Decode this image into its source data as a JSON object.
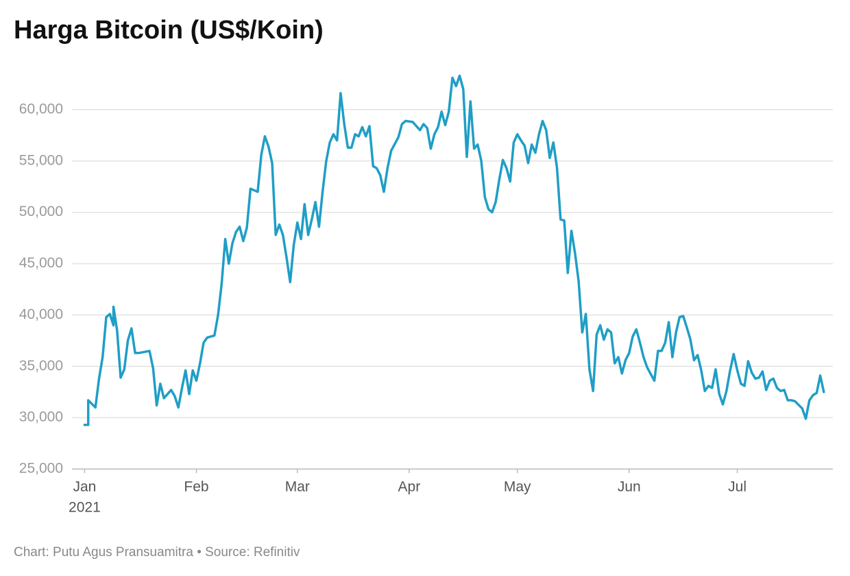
{
  "chart_data": {
    "type": "line",
    "title": "Harga Bitcoin (US$/Koin)",
    "footer": "Chart: Putu Agus Pransuamitra • Source: Refinitiv",
    "year_label": "2021",
    "color": "#1f9ec6",
    "grid": true,
    "xlim": [
      -3.5,
      207.5
    ],
    "xticks": [
      {
        "value": 0,
        "label": "Jan"
      },
      {
        "value": 31,
        "label": "Feb"
      },
      {
        "value": 59,
        "label": "Mar"
      },
      {
        "value": 90,
        "label": "Apr"
      },
      {
        "value": 120,
        "label": "May"
      },
      {
        "value": 151,
        "label": "Jun"
      },
      {
        "value": 181,
        "label": "Jul"
      }
    ],
    "ylim": [
      25000,
      64000
    ],
    "yticks": [
      {
        "value": 25000,
        "label": "25,000"
      },
      {
        "value": 30000,
        "label": "30,000"
      },
      {
        "value": 35000,
        "label": "35,000"
      },
      {
        "value": 40000,
        "label": "40,000"
      },
      {
        "value": 45000,
        "label": "45,000"
      },
      {
        "value": 50000,
        "label": "50,000"
      },
      {
        "value": 55000,
        "label": "55,000"
      },
      {
        "value": 60000,
        "label": "60,000"
      }
    ],
    "x": [
      0,
      1,
      1,
      3,
      4,
      5,
      6,
      7,
      8,
      8,
      9,
      10,
      11,
      12,
      13,
      14,
      15,
      18,
      19,
      20,
      21,
      22,
      24,
      25,
      26,
      27,
      28,
      29,
      30,
      31,
      32,
      33,
      34,
      36,
      37,
      38,
      39,
      40,
      41,
      42,
      43,
      44,
      45,
      46,
      48,
      49,
      50,
      51,
      52,
      53,
      54,
      55,
      56,
      57,
      58,
      59,
      60,
      61,
      62,
      63,
      64,
      65,
      66,
      67,
      68,
      69,
      70,
      71,
      72,
      73,
      74,
      75,
      76,
      77,
      78,
      79,
      80,
      81,
      82,
      83,
      84,
      85,
      87,
      88,
      89,
      91,
      92,
      93,
      94,
      95,
      96,
      97,
      98,
      99,
      100,
      101,
      102,
      103,
      104,
      105,
      106,
      107,
      108,
      109,
      110,
      111,
      112,
      113,
      114,
      115,
      116,
      117,
      118,
      119,
      120,
      121,
      122,
      123,
      124,
      125,
      126,
      127,
      128,
      129,
      130,
      131,
      132,
      133,
      134,
      135,
      136,
      137,
      138,
      139,
      140,
      141,
      142,
      143,
      144,
      145,
      146,
      147,
      148,
      149,
      150,
      151,
      152,
      153,
      154,
      155,
      156,
      158,
      159,
      160,
      161,
      162,
      163,
      164,
      165,
      166,
      167,
      168,
      169,
      170,
      171,
      172,
      173,
      174,
      175,
      176,
      177,
      178,
      179,
      180,
      181,
      182,
      183,
      184,
      185,
      186,
      187,
      188,
      189,
      190,
      191,
      192,
      193,
      194,
      195,
      196,
      197,
      199,
      200,
      201,
      202,
      203,
      204,
      205
    ],
    "values": [
      29300,
      29300,
      31700,
      31000,
      33800,
      35900,
      39800,
      40100,
      39000,
      40800,
      38500,
      33900,
      34700,
      37500,
      38700,
      36300,
      36300,
      36500,
      34800,
      31200,
      33300,
      31900,
      32700,
      32100,
      31000,
      32900,
      34600,
      32300,
      34600,
      33600,
      35300,
      37300,
      37800,
      38000,
      40000,
      43000,
      47400,
      45000,
      47000,
      48100,
      48600,
      47200,
      48500,
      52300,
      52000,
      55600,
      57400,
      56400,
      54800,
      47800,
      48800,
      47800,
      45600,
      43200,
      46800,
      49000,
      47400,
      50800,
      47800,
      49300,
      51000,
      48600,
      52000,
      55000,
      56800,
      57600,
      57000,
      61600,
      58600,
      56300,
      56300,
      57600,
      57400,
      58300,
      57400,
      58400,
      54500,
      54300,
      53600,
      52000,
      54300,
      56000,
      57300,
      58600,
      58900,
      58800,
      58400,
      58000,
      58600,
      58200,
      56200,
      57600,
      58300,
      59800,
      58500,
      59800,
      63100,
      62300,
      63300,
      62000,
      55400,
      60800,
      56200,
      56600,
      55000,
      51500,
      50300,
      50000,
      51000,
      53200,
      55100,
      54300,
      53000,
      56800,
      57600,
      57000,
      56500,
      54800,
      56600,
      55800,
      57600,
      58900,
      58000,
      55300,
      56800,
      54300,
      49300,
      49200,
      44100,
      48200,
      46000,
      43300,
      38300,
      40100,
      34700,
      32600,
      38100,
      39000,
      37600,
      38600,
      38300,
      35300,
      35900,
      34300,
      35600,
      36300,
      37900,
      38600,
      37300,
      35900,
      34900,
      33600,
      36500,
      36500,
      37300,
      39300,
      35900,
      38300,
      39800,
      39900,
      38800,
      37600,
      35600,
      36100,
      34600,
      32600,
      33100,
      32900,
      34700,
      32300,
      31300,
      32600,
      34600,
      36200,
      34600,
      33300,
      33100,
      35500,
      34400,
      33800,
      33900,
      34500,
      32700,
      33600,
      33800,
      32900,
      32600,
      32700,
      31700,
      31700,
      31600,
      30900,
      29900,
      31700,
      32200,
      32400,
      34100,
      32500
    ]
  }
}
